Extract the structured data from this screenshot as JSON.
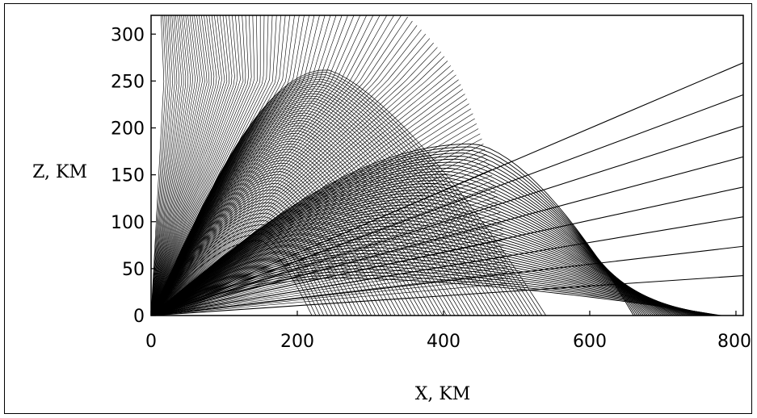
{
  "chart_data": {
    "type": "line",
    "title": "",
    "xlabel": "X, KM",
    "ylabel": "Z, KM",
    "xlim": [
      0,
      810
    ],
    "ylim": [
      0,
      320
    ],
    "xticks": [
      0,
      200,
      400,
      600,
      800
    ],
    "yticks": [
      0,
      50,
      100,
      150,
      200,
      250,
      300
    ],
    "grid": false,
    "legend": "none",
    "line_color": "#000000",
    "ray_families": [
      {
        "source": [
          0,
          0
        ],
        "launch_angles_deg": [
          4,
          86
        ],
        "rays": 120,
        "max_height_km": 320
      },
      {
        "source": [
          0,
          0
        ],
        "launch_angles_deg": [
          4,
          60
        ],
        "rays": 60,
        "max_height_km": 262,
        "apex_x_km": 220
      },
      {
        "source": [
          0,
          0
        ],
        "launch_angles_deg": [
          4,
          40
        ],
        "rays": 45,
        "max_height_km": 183,
        "apex_x_km": 420
      }
    ]
  }
}
